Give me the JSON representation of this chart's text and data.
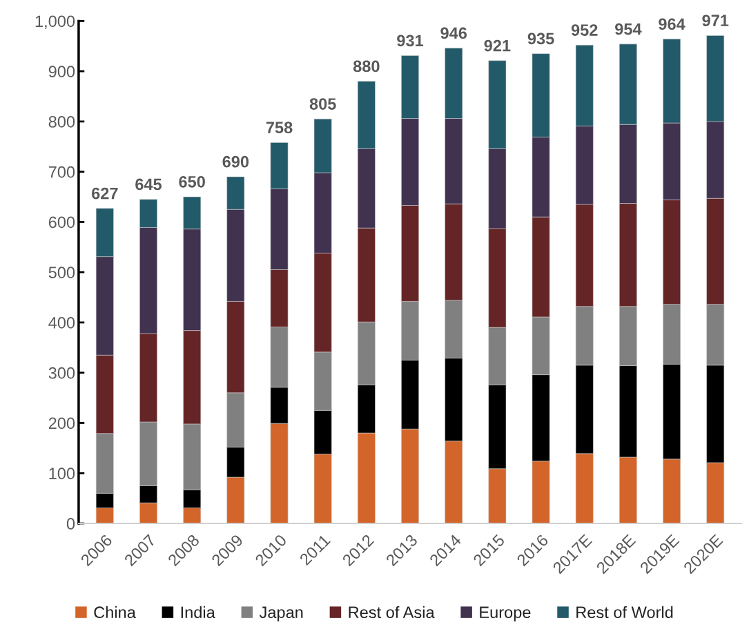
{
  "chart_data": {
    "type": "bar",
    "stacked": true,
    "categories": [
      "2006",
      "2007",
      "2008",
      "2009",
      "2010",
      "2011",
      "2012",
      "2013",
      "2014",
      "2015",
      "2016",
      "2017E",
      "2018E",
      "2019E",
      "2020E"
    ],
    "series": [
      {
        "name": "China",
        "color": "#d4652a",
        "values": [
          31,
          41,
          31,
          92,
          199,
          138,
          180,
          188,
          164,
          109,
          124,
          139,
          132,
          128,
          121
        ]
      },
      {
        "name": "India",
        "color": "#000000",
        "values": [
          29,
          34,
          36,
          60,
          72,
          87,
          96,
          137,
          165,
          167,
          172,
          176,
          182,
          189,
          194
        ]
      },
      {
        "name": "Japan",
        "color": "#808080",
        "values": [
          119,
          127,
          131,
          108,
          120,
          116,
          125,
          117,
          115,
          114,
          115,
          117,
          118,
          119,
          121
        ]
      },
      {
        "name": "Rest of Asia",
        "color": "#652526",
        "values": [
          156,
          176,
          186,
          182,
          114,
          197,
          187,
          191,
          192,
          197,
          199,
          203,
          205,
          208,
          211
        ]
      },
      {
        "name": "Europe",
        "color": "#41324f",
        "values": [
          196,
          211,
          202,
          183,
          161,
          160,
          158,
          173,
          170,
          159,
          159,
          156,
          157,
          153,
          153
        ]
      },
      {
        "name": "Rest of World",
        "color": "#235a69",
        "values": [
          96,
          56,
          64,
          65,
          92,
          107,
          134,
          125,
          140,
          175,
          166,
          161,
          160,
          167,
          171
        ]
      }
    ],
    "totals": [
      "627",
      "645",
      "650",
      "690",
      "758",
      "805",
      "880",
      "931",
      "946",
      "921",
      "935",
      "952",
      "954",
      "964",
      "971"
    ],
    "ylim": [
      0,
      1000
    ],
    "yticks": [
      0,
      100,
      200,
      300,
      400,
      500,
      600,
      700,
      800,
      900,
      {
        "value": 1000,
        "label": "1,000"
      }
    ],
    "grid": false,
    "legend": "bottom"
  }
}
